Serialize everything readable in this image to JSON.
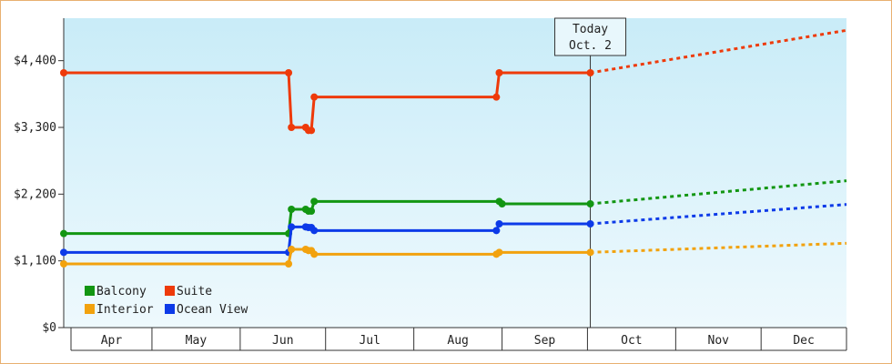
{
  "chart_data": {
    "type": "line",
    "title": "",
    "xlabel": "",
    "ylabel": "",
    "y_ticks": [
      "$0",
      "$1,100",
      "$2,200",
      "$3,300",
      "$4,400"
    ],
    "y_tick_values": [
      0,
      1100,
      2200,
      3300,
      4400
    ],
    "ylim": [
      0,
      5100
    ],
    "x_months": [
      "Apr",
      "May",
      "Jun",
      "Jul",
      "Aug",
      "Sep",
      "Oct",
      "Nov",
      "Dec"
    ],
    "xlim": [
      "2023-03-31",
      "2023-12-31"
    ],
    "today": {
      "line1": "Today",
      "line2": "Oct. 2",
      "date": "2023-10-02"
    },
    "legend_position": "bottom-left",
    "background": {
      "top": "#c9ecf8",
      "bottom": "#eef9fd"
    },
    "series": [
      {
        "name": "Suite",
        "color": "#ee3a0a",
        "points": [
          [
            "2023-03-31",
            4200
          ],
          [
            "2023-06-18",
            4200
          ],
          [
            "2023-06-19",
            3300
          ],
          [
            "2023-06-24",
            3300
          ],
          [
            "2023-06-25",
            3250
          ],
          [
            "2023-06-26",
            3250
          ],
          [
            "2023-06-27",
            3800
          ],
          [
            "2023-08-30",
            3800
          ],
          [
            "2023-08-31",
            4200
          ],
          [
            "2023-10-02",
            4200
          ]
        ],
        "projection": [
          [
            "2023-10-02",
            4200
          ],
          [
            "2023-12-31",
            4900
          ]
        ]
      },
      {
        "name": "Balcony",
        "color": "#129612",
        "points": [
          [
            "2023-03-31",
            1550
          ],
          [
            "2023-06-18",
            1550
          ],
          [
            "2023-06-19",
            1950
          ],
          [
            "2023-06-24",
            1950
          ],
          [
            "2023-06-25",
            1920
          ],
          [
            "2023-06-26",
            1920
          ],
          [
            "2023-06-27",
            2080
          ],
          [
            "2023-08-31",
            2080
          ],
          [
            "2023-09-01",
            2040
          ],
          [
            "2023-10-02",
            2040
          ]
        ],
        "projection": [
          [
            "2023-10-02",
            2040
          ],
          [
            "2023-12-31",
            2420
          ]
        ]
      },
      {
        "name": "Ocean View",
        "color": "#0c3ae8",
        "points": [
          [
            "2023-03-31",
            1240
          ],
          [
            "2023-06-18",
            1240
          ],
          [
            "2023-06-19",
            1660
          ],
          [
            "2023-06-24",
            1660
          ],
          [
            "2023-06-25",
            1650
          ],
          [
            "2023-06-26",
            1650
          ],
          [
            "2023-06-27",
            1600
          ],
          [
            "2023-08-30",
            1600
          ],
          [
            "2023-08-31",
            1710
          ],
          [
            "2023-10-02",
            1710
          ]
        ],
        "projection": [
          [
            "2023-10-02",
            1710
          ],
          [
            "2023-12-31",
            2030
          ]
        ]
      },
      {
        "name": "Interior",
        "color": "#f2a20e",
        "points": [
          [
            "2023-03-31",
            1050
          ],
          [
            "2023-06-18",
            1050
          ],
          [
            "2023-06-19",
            1290
          ],
          [
            "2023-06-24",
            1290
          ],
          [
            "2023-06-25",
            1270
          ],
          [
            "2023-06-26",
            1270
          ],
          [
            "2023-06-27",
            1210
          ],
          [
            "2023-08-30",
            1210
          ],
          [
            "2023-08-31",
            1240
          ],
          [
            "2023-10-02",
            1240
          ]
        ],
        "projection": [
          [
            "2023-10-02",
            1240
          ],
          [
            "2023-12-31",
            1390
          ]
        ]
      }
    ],
    "legend": [
      {
        "name": "Balcony",
        "color": "#129612"
      },
      {
        "name": "Suite",
        "color": "#ee3a0a"
      },
      {
        "name": "Interior",
        "color": "#f2a20e"
      },
      {
        "name": "Ocean View",
        "color": "#0c3ae8"
      }
    ]
  }
}
